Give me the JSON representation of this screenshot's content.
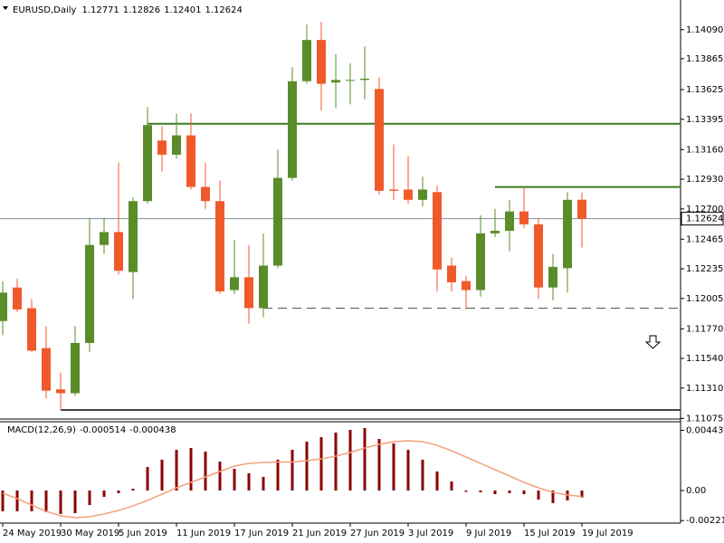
{
  "chart_data": [
    {
      "type": "candlestick",
      "title": "EURUSD,Daily",
      "categories": [
        "24 May 2019",
        null,
        null,
        null,
        "30 May 2019",
        null,
        null,
        null,
        "5 Jun 2019",
        null,
        null,
        null,
        "11 Jun 2019",
        null,
        null,
        null,
        "17 Jun 2019",
        null,
        null,
        null,
        "21 Jun 2019",
        null,
        null,
        null,
        "27 Jun 2019",
        null,
        null,
        null,
        "3 Jul 2019",
        null,
        null,
        null,
        "9 Jul 2019",
        null,
        null,
        null,
        "15 Jul 2019",
        null,
        null,
        null,
        "19 Jul 2019"
      ],
      "open": [
        1.1183,
        1.1209,
        1.1193,
        1.1162,
        1.113,
        1.1127,
        1.1166,
        1.1242,
        1.1252,
        1.1221,
        1.1276,
        1.1323,
        1.1312,
        1.1327,
        1.1287,
        1.1276,
        1.1207,
        1.1217,
        1.1193,
        1.1226,
        1.1294,
        1.1369,
        1.1401,
        1.1368,
        1.137,
        1.137,
        1.1363,
        1.1285,
        1.1285,
        1.1277,
        1.1283,
        1.1226,
        1.1214,
        1.1207,
        1.1251,
        1.1253,
        1.1268,
        1.1258,
        1.1209,
        1.1224,
        1.12771
      ],
      "high": [
        1.1214,
        1.1216,
        1.12,
        1.1179,
        1.1143,
        1.1179,
        1.1263,
        1.1263,
        1.1306,
        1.1279,
        1.1349,
        1.1334,
        1.1344,
        1.1344,
        1.1306,
        1.1292,
        1.1246,
        1.1242,
        1.1251,
        1.1316,
        1.138,
        1.1413,
        1.1415,
        1.139,
        1.1383,
        1.1396,
        1.1372,
        1.132,
        1.1311,
        1.1295,
        1.1288,
        1.1232,
        1.1218,
        1.1265,
        1.127,
        1.1277,
        1.1286,
        1.1263,
        1.1235,
        1.1283,
        1.12826
      ],
      "low": [
        1.1172,
        1.119,
        1.1159,
        1.1123,
        1.1114,
        1.1125,
        1.1159,
        1.1235,
        1.1219,
        1.12,
        1.1274,
        1.1299,
        1.1309,
        1.1285,
        1.127,
        1.1204,
        1.1204,
        1.1181,
        1.1186,
        1.1224,
        1.1292,
        1.1367,
        1.1346,
        1.1348,
        1.1351,
        1.1355,
        1.1281,
        1.1277,
        1.1274,
        1.1272,
        1.1206,
        1.1206,
        1.1192,
        1.1202,
        1.1248,
        1.1237,
        1.1255,
        1.12,
        1.1199,
        1.1205,
        1.12401
      ],
      "close": [
        1.1205,
        1.1192,
        1.116,
        1.1129,
        1.1127,
        1.1166,
        1.1242,
        1.1252,
        1.1222,
        1.1276,
        1.1335,
        1.1312,
        1.1327,
        1.1287,
        1.1276,
        1.1206,
        1.1217,
        1.1193,
        1.1226,
        1.1294,
        1.1369,
        1.1401,
        1.1367,
        1.137,
        1.137,
        1.1371,
        1.1284,
        1.1284,
        1.1277,
        1.1285,
        1.1223,
        1.1213,
        1.1207,
        1.1251,
        1.1253,
        1.1268,
        1.1258,
        1.1209,
        1.1225,
        1.1277,
        1.12624
      ],
      "up_color": "#5b8c2a",
      "down_color": "#f05a2a",
      "ylim": [
        1.1107,
        1.1432
      ],
      "yticks": [
        {
          "value": 1.1409,
          "label": "1.14090"
        },
        1.13865,
        1.13625,
        1.13395,
        {
          "value": 1.1316,
          "label": "1.13160"
        },
        {
          "value": 1.1293,
          "label": "1.12930"
        },
        {
          "value": 1.127,
          "label": "1.12700"
        },
        1.12465,
        1.12235,
        1.12005,
        {
          "value": 1.1177,
          "label": "1.11770"
        },
        {
          "value": 1.1154,
          "label": "1.11540"
        },
        {
          "value": 1.1131,
          "label": "1.11310"
        },
        1.11075
      ],
      "levels": [
        {
          "value": 1.1336,
          "from": 10,
          "color": "#3a7d22",
          "style": "solid"
        },
        {
          "value": 1.1287,
          "from": 34,
          "color": "#3a7d22",
          "style": "solid"
        },
        {
          "value": 1.1114,
          "from": 4,
          "color": "#444444",
          "style": "solid"
        },
        {
          "value": 1.1193,
          "from": 18,
          "color": "#555555",
          "style": "dashed"
        }
      ]
    },
    {
      "type": "macd",
      "title": "MACD(12,26,9)",
      "histogram": [
        -0.00153,
        -0.00153,
        -0.00153,
        -0.0016,
        -0.00173,
        -0.00167,
        -0.00107,
        -0.00047,
        -0.0002,
        0.00013,
        0.00173,
        0.00227,
        0.003,
        0.00313,
        0.00287,
        0.00213,
        0.0016,
        0.00127,
        0.001,
        0.00227,
        0.003,
        0.0036,
        0.00393,
        0.00427,
        0.00447,
        0.0046,
        0.0038,
        0.00347,
        0.003,
        0.00227,
        0.0014,
        0.00067,
        -0.0001,
        -0.00013,
        -0.00027,
        -0.0002,
        -0.00027,
        -0.00067,
        -0.00093,
        -0.00073,
        -0.000514
      ],
      "signal": [
        -0.0002,
        -0.0006,
        -0.00107,
        -0.00153,
        -0.00187,
        -0.002,
        -0.00193,
        -0.00173,
        -0.00147,
        -0.00113,
        -0.00073,
        -0.00027,
        0.0002,
        0.0006,
        0.001,
        0.0014,
        0.0018,
        0.002,
        0.00207,
        0.0021,
        0.0021,
        0.0022,
        0.00233,
        0.00253,
        0.0028,
        0.00313,
        0.0034,
        0.0036,
        0.00367,
        0.0036,
        0.00333,
        0.00293,
        0.00247,
        0.002,
        0.00153,
        0.00107,
        0.0006,
        0.0002,
        -0.00013,
        -0.00033,
        -0.000438
      ],
      "histogram_color": "#8b0000",
      "signal_color": "#f4a07a",
      "ylim": [
        -0.0024,
        0.005
      ],
      "yticks": [
        0.004437,
        {
          "value": 0,
          "label": "0.00"
        },
        -0.002216
      ]
    }
  ]
}
